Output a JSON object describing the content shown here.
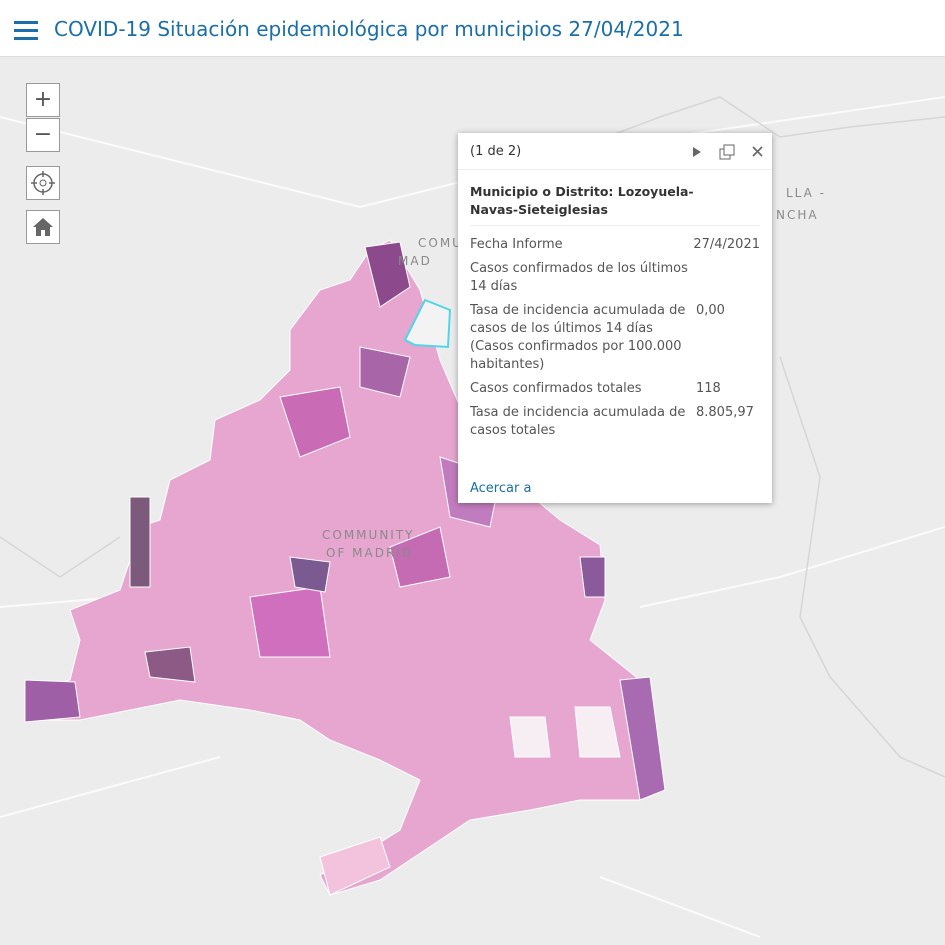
{
  "header": {
    "title": "COVID-19 Situación epidemiológica por municipios 27/04/2021"
  },
  "zoom_controls": {
    "zoom_in": "+",
    "zoom_out": "−"
  },
  "map_labels": {
    "region": [
      "COMMUNITY",
      "OF MADRID"
    ],
    "region_top": [
      "COMU",
      "MAD"
    ],
    "neighbor": [
      "LLA -",
      "NCHA"
    ]
  },
  "popup": {
    "counter": "(1 de 2)",
    "heading": "Municipio o Distrito: Lozoyuela-Navas-Sieteiglesias",
    "rows": [
      {
        "label": "Fecha Informe",
        "value": "27/4/2021"
      },
      {
        "label": "Casos confirmados de los últimos 14 días"
      },
      {
        "label": "Tasa de incidencia acumulada de casos de los últimos 14 días (Casos confirmados por 100.000 habitantes)",
        "value": "0,00"
      },
      {
        "label": "Casos confirmados totales",
        "value": "118"
      },
      {
        "label": "Tasa de incidencia acumulada de casos totales",
        "value": "8.805,97"
      }
    ],
    "action": "Acercar a"
  }
}
